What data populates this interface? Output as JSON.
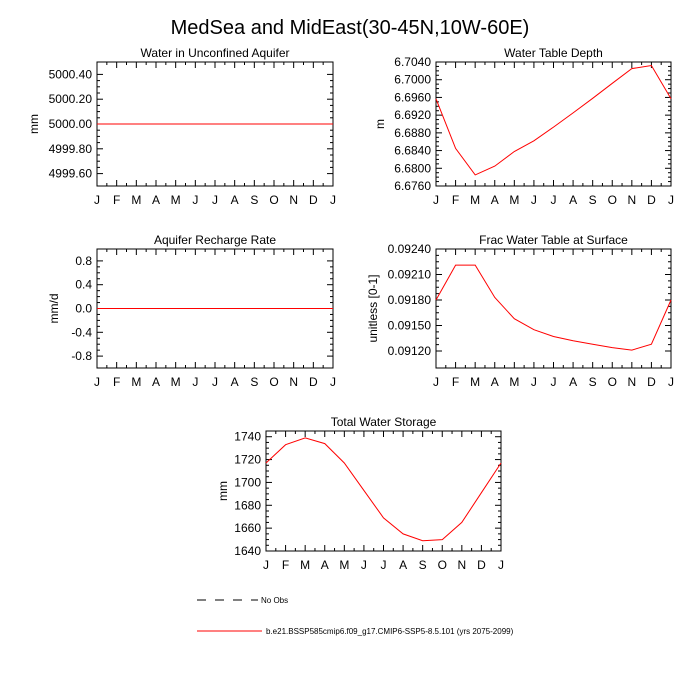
{
  "figure": {
    "title": "MedSea and MidEast(30-45N,10W-60E)",
    "legend": {
      "obs_label": "No Obs",
      "model_label": "b.e21.BSSP585cmip6.f09_g17.CMIP6-SSP5-8.5.101 (yrs 2075-2099)",
      "model_color": "#ff0000",
      "obs_color": "#000000"
    }
  },
  "chart_data": [
    {
      "type": "line",
      "title": "Water in Unconfined Aquifer",
      "ylabel": "mm",
      "xlabel": "",
      "categories": [
        "J",
        "F",
        "M",
        "A",
        "M",
        "J",
        "J",
        "A",
        "S",
        "O",
        "N",
        "D",
        "J"
      ],
      "ylim": [
        4999.5,
        5000.5
      ],
      "yticks": [
        4999.6,
        4999.8,
        5000.0,
        5000.2,
        5000.4
      ],
      "ytick_labels": [
        "4999.60",
        "4999.80",
        "5000.00",
        "5000.20",
        "5000.40"
      ],
      "series": [
        {
          "values": [
            5000,
            5000,
            5000,
            5000,
            5000,
            5000,
            5000,
            5000,
            5000,
            5000,
            5000,
            5000,
            5000
          ],
          "color": "#ff0000"
        }
      ]
    },
    {
      "type": "line",
      "title": "Water Table Depth",
      "ylabel": "m",
      "xlabel": "",
      "categories": [
        "J",
        "F",
        "M",
        "A",
        "M",
        "J",
        "J",
        "A",
        "S",
        "O",
        "N",
        "D",
        "J"
      ],
      "ylim": [
        6.676,
        6.704
      ],
      "yticks": [
        6.676,
        6.68,
        6.684,
        6.688,
        6.692,
        6.696,
        6.7,
        6.704
      ],
      "ytick_labels": [
        "6.6760",
        "6.6800",
        "6.6840",
        "6.6880",
        "6.6920",
        "6.6960",
        "6.7000",
        "6.7040"
      ],
      "series": [
        {
          "values": [
            6.6957,
            6.6845,
            6.6785,
            6.6805,
            6.6838,
            6.6862,
            6.6893,
            6.6925,
            6.6958,
            6.6992,
            6.7025,
            6.7032,
            6.6957
          ],
          "color": "#ff0000"
        }
      ]
    },
    {
      "type": "line",
      "title": "Aquifer Recharge Rate",
      "ylabel": "mm/d",
      "xlabel": "",
      "categories": [
        "J",
        "F",
        "M",
        "A",
        "M",
        "J",
        "J",
        "A",
        "S",
        "O",
        "N",
        "D",
        "J"
      ],
      "ylim": [
        -1.0,
        1.0
      ],
      "yticks": [
        -0.8,
        -0.4,
        0.0,
        0.4,
        0.8
      ],
      "ytick_labels": [
        "-0.8",
        "-0.4",
        "0.0",
        "0.4",
        "0.8"
      ],
      "series": [
        {
          "values": [
            0,
            0,
            0,
            0,
            0,
            0,
            0,
            0,
            0,
            0,
            0,
            0,
            0
          ],
          "color": "#ff0000"
        }
      ]
    },
    {
      "type": "line",
      "title": "Frac Water Table at Surface",
      "ylabel": "unitless [0-1]",
      "xlabel": "",
      "categories": [
        "J",
        "F",
        "M",
        "A",
        "M",
        "J",
        "J",
        "A",
        "S",
        "O",
        "N",
        "D",
        "J"
      ],
      "ylim": [
        0.091,
        0.0924
      ],
      "yticks": [
        0.0912,
        0.0915,
        0.0918,
        0.0921,
        0.0924
      ],
      "ytick_labels": [
        "0.09120",
        "0.09150",
        "0.09180",
        "0.09210",
        "0.09240"
      ],
      "series": [
        {
          "values": [
            0.0918,
            0.09221,
            0.09221,
            0.09183,
            0.09158,
            0.09145,
            0.09137,
            0.09132,
            0.09128,
            0.09124,
            0.09121,
            0.09128,
            0.0918
          ],
          "color": "#ff0000"
        }
      ]
    },
    {
      "type": "line",
      "title": "Total Water Storage",
      "ylabel": "mm",
      "xlabel": "",
      "categories": [
        "J",
        "F",
        "M",
        "A",
        "M",
        "J",
        "J",
        "A",
        "S",
        "O",
        "N",
        "D",
        "J"
      ],
      "ylim": [
        1640,
        1745
      ],
      "yticks": [
        1640,
        1660,
        1680,
        1700,
        1720,
        1740
      ],
      "ytick_labels": [
        "1640",
        "1660",
        "1680",
        "1700",
        "1720",
        "1740"
      ],
      "series": [
        {
          "values": [
            1717,
            1733,
            1739,
            1734,
            1717,
            1693,
            1669,
            1655,
            1649,
            1650,
            1665,
            1691,
            1717
          ],
          "color": "#ff0000"
        }
      ]
    }
  ]
}
